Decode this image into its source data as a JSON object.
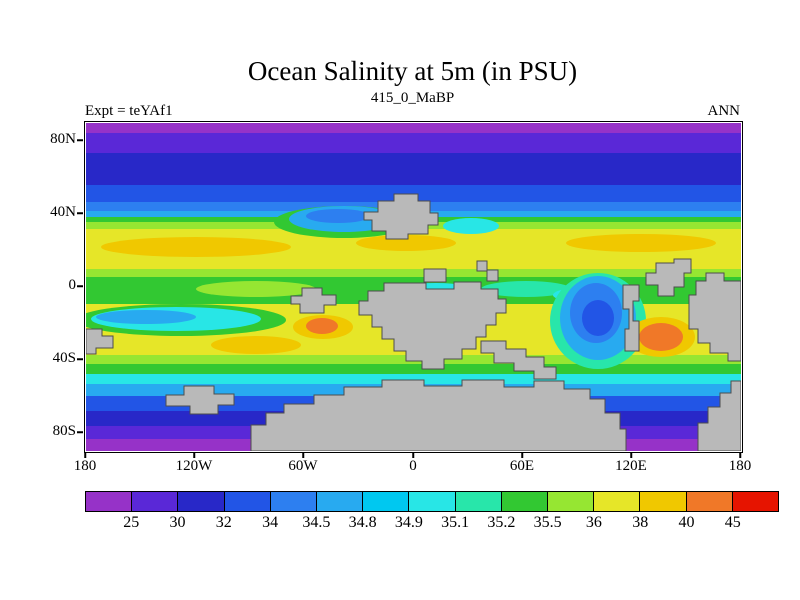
{
  "title": "Ocean Salinity at 5m (in PSU)",
  "subtitle": "415_0_MaBP",
  "expt_label": "Expt = teYAf1",
  "season_label": "ANN",
  "x_axis": {
    "ticks": [
      "180",
      "120W",
      "60W",
      "0",
      "60E",
      "120E",
      "180"
    ]
  },
  "y_axis": {
    "ticks": [
      "80N",
      "40N",
      "0",
      "40S",
      "80S"
    ]
  },
  "colorbar": {
    "labels": [
      "25",
      "30",
      "32",
      "34",
      "34.5",
      "34.8",
      "34.9",
      "35.1",
      "35.2",
      "35.5",
      "36",
      "38",
      "40",
      "45"
    ],
    "colors": [
      "#9632c8",
      "#5a28d7",
      "#2828c8",
      "#2255e6",
      "#2d7ff0",
      "#28aaf0",
      "#00c8f0",
      "#28e6e6",
      "#28e6aa",
      "#32c832",
      "#96e632",
      "#e6e628",
      "#f0c800",
      "#f07828",
      "#e61400"
    ]
  },
  "land_color": "#b9b9b9",
  "chart_data": {
    "type": "heatmap",
    "title": "Ocean Salinity at 5m (in PSU)",
    "subtitle": "415_0_MaBP",
    "experiment": "teYAf1",
    "season": "ANN",
    "units": "PSU",
    "depth_m": 5,
    "projection": "cylindrical lat-lon, 180W-180E, 90S-90N",
    "x_ticks": [
      "180",
      "120W",
      "60W",
      "0",
      "60E",
      "120E",
      "180"
    ],
    "y_ticks": [
      "80N",
      "40N",
      "0",
      "40S",
      "80S"
    ],
    "levels_psu": [
      25,
      30,
      32,
      34,
      34.5,
      34.8,
      34.9,
      35.1,
      35.2,
      35.5,
      36,
      38,
      40,
      45
    ],
    "palette": [
      "#9632c8",
      "#5a28d7",
      "#2828c8",
      "#2255e6",
      "#2d7ff0",
      "#28aaf0",
      "#00c8f0",
      "#28e6e6",
      "#28e6aa",
      "#32c832",
      "#96e632",
      "#e6e628",
      "#f0c800",
      "#f07828",
      "#e61400"
    ],
    "zonal_bands": [
      {
        "lat_range": "90N-80N",
        "salinity_psu": "<25 to 30"
      },
      {
        "lat_range": "80N-60N",
        "salinity_psu": "30-34"
      },
      {
        "lat_range": "60N-48N",
        "salinity_psu": "34-34.9"
      },
      {
        "lat_range": "48N-40N",
        "salinity_psu": "35.1-36"
      },
      {
        "lat_range": "40N-15N",
        "salinity_psu": "36-40 (gold patches 38-40)"
      },
      {
        "lat_range": "15N-8S",
        "salinity_psu": "34.9-35.5 (equatorial fresh band)"
      },
      {
        "lat_range": "8S-38S",
        "salinity_psu": "36-40 with local maxima 40-45 (orange cells near 60W and 130E); fresher 34.5-35 pool near 100E-140E"
      },
      {
        "lat_range": "38S-50S",
        "salinity_psu": "35.2-36"
      },
      {
        "lat_range": "50S-65S",
        "salinity_psu": "34-34.9"
      },
      {
        "lat_range": "65S-90S",
        "salinity_psu": "<25 to 34; large landmass (gray)"
      }
    ],
    "land_note": "Gray areas are land (paleogeography, 415 Ma BP); large polar continent in south, central low-latitude continent, eastern continent near 120E-180"
  }
}
